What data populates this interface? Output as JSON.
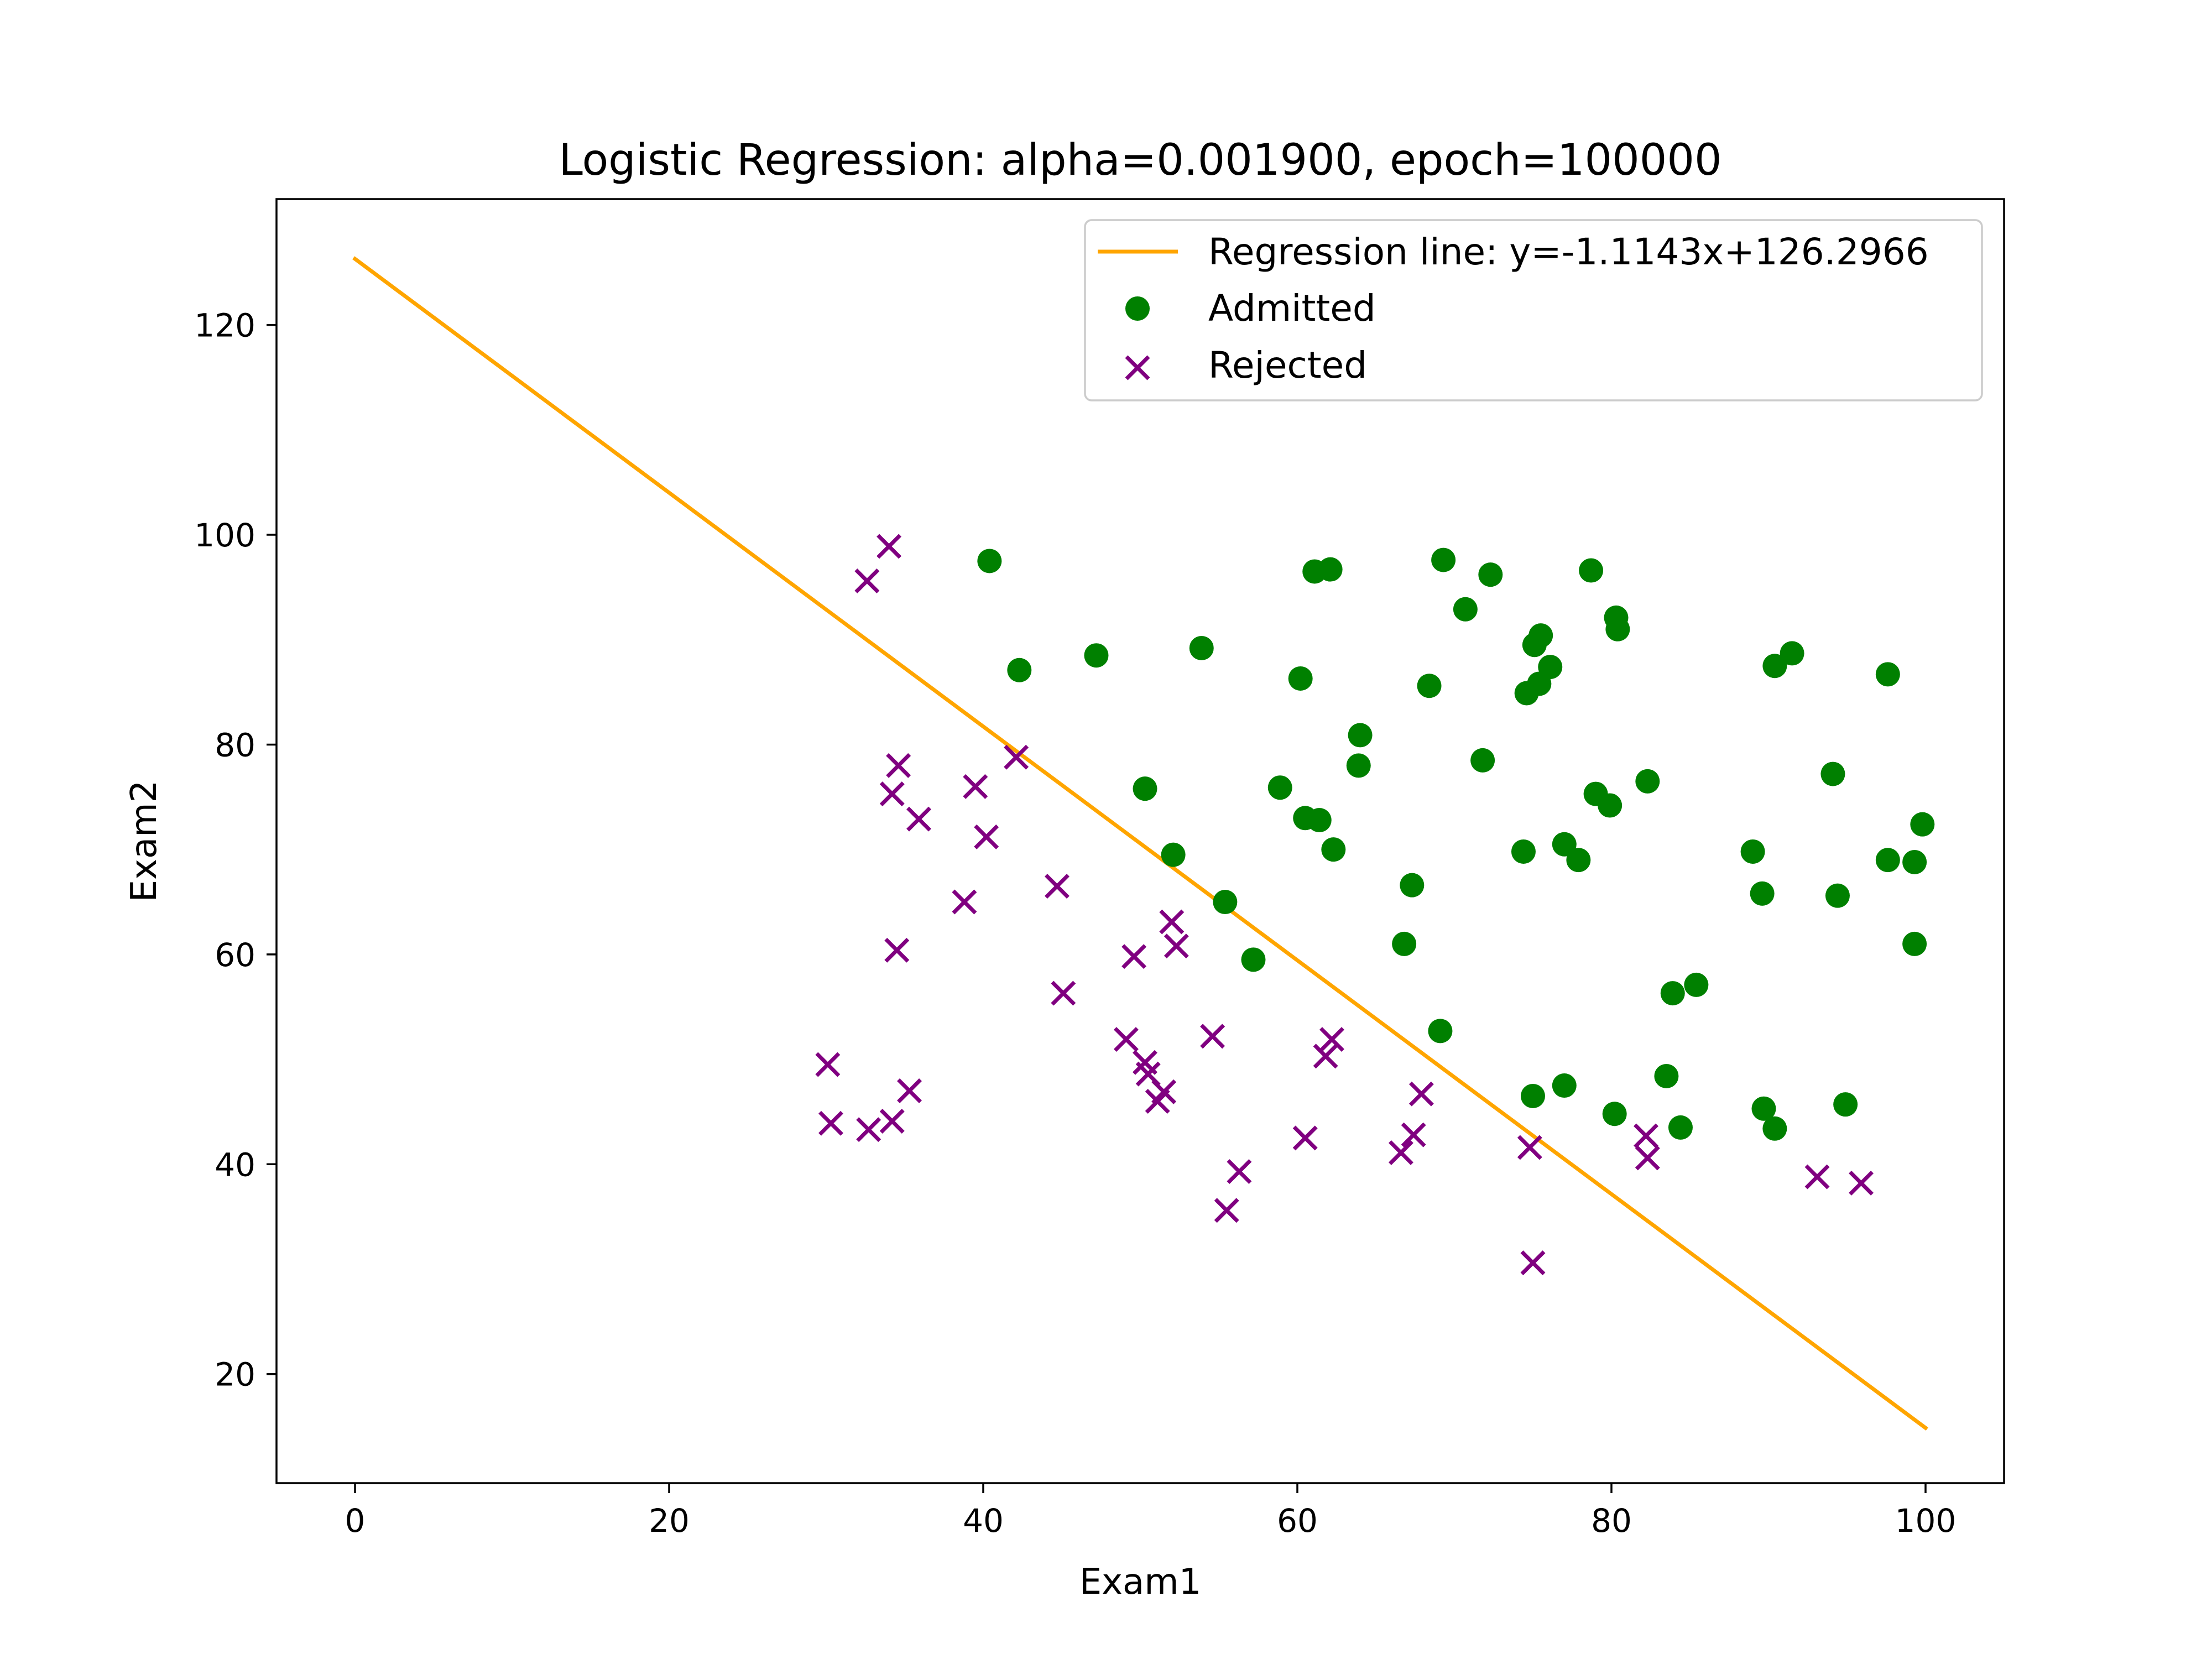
{
  "chart_data": {
    "type": "scatter",
    "title": "Logistic Regression: alpha=0.001900, epoch=100000",
    "xlabel": "Exam1",
    "ylabel": "Exam2",
    "xlim": [
      -5,
      105
    ],
    "ylim": [
      9.6,
      132.0
    ],
    "xticks": [
      0,
      20,
      40,
      60,
      80,
      100
    ],
    "yticks": [
      20,
      40,
      60,
      80,
      100,
      120
    ],
    "grid": false,
    "legend_position": "top-right",
    "colors": {
      "line": "#FFA500",
      "admitted": "#008000",
      "rejected": "#800080"
    },
    "line": {
      "name": "Regression line: y=-1.1143x+126.2966",
      "x": [
        0,
        100
      ],
      "y": [
        126.2966,
        14.8666
      ]
    },
    "series": [
      {
        "name": "Admitted",
        "marker": "circle",
        "points": [
          [
            40.4,
            97.5
          ],
          [
            42.3,
            87.1
          ],
          [
            47.2,
            88.5
          ],
          [
            53.9,
            89.2
          ],
          [
            60.2,
            86.3
          ],
          [
            61.1,
            96.5
          ],
          [
            62.1,
            96.7
          ],
          [
            69.3,
            97.6
          ],
          [
            72.3,
            96.2
          ],
          [
            78.7,
            96.6
          ],
          [
            70.7,
            92.9
          ],
          [
            80.3,
            92.1
          ],
          [
            80.4,
            91.0
          ],
          [
            75.1,
            89.5
          ],
          [
            75.5,
            90.4
          ],
          [
            76.1,
            87.4
          ],
          [
            75.4,
            85.8
          ],
          [
            74.6,
            84.9
          ],
          [
            68.4,
            85.6
          ],
          [
            64.0,
            80.9
          ],
          [
            63.9,
            78.0
          ],
          [
            71.8,
            78.5
          ],
          [
            58.9,
            75.9
          ],
          [
            50.3,
            75.8
          ],
          [
            60.5,
            73.0
          ],
          [
            61.4,
            72.8
          ],
          [
            62.3,
            70.0
          ],
          [
            52.1,
            69.5
          ],
          [
            55.4,
            65.0
          ],
          [
            57.2,
            59.5
          ],
          [
            66.8,
            61.0
          ],
          [
            67.3,
            66.6
          ],
          [
            69.1,
            52.7
          ],
          [
            74.4,
            69.8
          ],
          [
            77.0,
            70.5
          ],
          [
            77.9,
            69.0
          ],
          [
            79.0,
            75.3
          ],
          [
            79.9,
            74.2
          ],
          [
            82.3,
            76.5
          ],
          [
            89.0,
            69.8
          ],
          [
            89.6,
            65.8
          ],
          [
            94.1,
            77.2
          ],
          [
            94.4,
            65.6
          ],
          [
            97.6,
            86.7
          ],
          [
            91.5,
            88.7
          ],
          [
            90.4,
            87.5
          ],
          [
            97.6,
            69.0
          ],
          [
            99.3,
            68.8
          ],
          [
            99.8,
            72.4
          ],
          [
            99.3,
            61.0
          ],
          [
            85.4,
            57.1
          ],
          [
            83.9,
            56.3
          ],
          [
            83.5,
            48.4
          ],
          [
            84.4,
            43.5
          ],
          [
            80.2,
            44.8
          ],
          [
            75.0,
            46.5
          ],
          [
            77.0,
            47.5
          ],
          [
            89.7,
            45.3
          ],
          [
            90.4,
            43.4
          ],
          [
            94.9,
            45.7
          ]
        ]
      },
      {
        "name": "Rejected",
        "marker": "x",
        "points": [
          [
            34.0,
            98.9
          ],
          [
            32.6,
            95.6
          ],
          [
            34.6,
            78.0
          ],
          [
            34.2,
            75.3
          ],
          [
            35.9,
            72.9
          ],
          [
            39.5,
            76.0
          ],
          [
            40.2,
            71.2
          ],
          [
            42.1,
            78.8
          ],
          [
            38.8,
            65.0
          ],
          [
            44.7,
            66.5
          ],
          [
            34.5,
            60.4
          ],
          [
            45.1,
            56.3
          ],
          [
            49.6,
            59.8
          ],
          [
            52.0,
            63.1
          ],
          [
            52.3,
            60.8
          ],
          [
            54.6,
            52.2
          ],
          [
            49.1,
            51.9
          ],
          [
            50.3,
            49.7
          ],
          [
            50.5,
            48.6
          ],
          [
            51.5,
            46.9
          ],
          [
            51.1,
            46.0
          ],
          [
            61.8,
            50.3
          ],
          [
            62.2,
            51.9
          ],
          [
            30.1,
            49.5
          ],
          [
            30.3,
            43.9
          ],
          [
            32.7,
            43.3
          ],
          [
            34.2,
            44.1
          ],
          [
            35.3,
            47.0
          ],
          [
            55.5,
            35.6
          ],
          [
            56.3,
            39.3
          ],
          [
            60.5,
            42.5
          ],
          [
            66.6,
            41.1
          ],
          [
            67.4,
            42.8
          ],
          [
            67.9,
            46.7
          ],
          [
            74.8,
            41.6
          ],
          [
            75.0,
            30.6
          ],
          [
            82.2,
            42.7
          ],
          [
            82.3,
            40.6
          ],
          [
            93.1,
            38.8
          ],
          [
            95.9,
            38.2
          ]
        ]
      }
    ]
  }
}
